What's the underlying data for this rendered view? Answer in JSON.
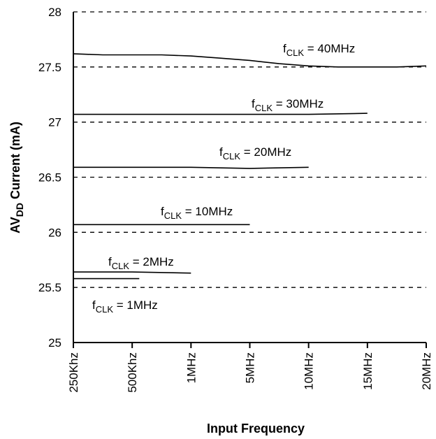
{
  "chart_data": {
    "type": "line",
    "xlabel": "Input Frequency",
    "ylabel": {
      "main": "AV",
      "sub": "DD",
      "rest": " Current (mA)"
    },
    "categories": [
      "250Khz",
      "500Khz",
      "1MHz",
      "5MHz",
      "10MHz",
      "15MHz",
      "20MHz"
    ],
    "y_ticks": [
      "25",
      "25.5",
      "26",
      "26.5",
      "27",
      "27.5",
      "28"
    ],
    "ylim": [
      25,
      28
    ],
    "grid": true,
    "series": [
      {
        "name": {
          "main": "f",
          "sub": "CLK",
          "rest": " = 40MHz"
        },
        "x": [
          0,
          0.5,
          1,
          1.5,
          2,
          2.5,
          3,
          3.5,
          4,
          4.5,
          5,
          5.5,
          6
        ],
        "values": [
          27.62,
          27.61,
          27.61,
          27.61,
          27.6,
          27.58,
          27.56,
          27.53,
          27.51,
          27.5,
          27.5,
          27.5,
          27.51
        ]
      },
      {
        "name": {
          "main": "f",
          "sub": "CLK",
          "rest": " = 30MHz"
        },
        "x": [
          0,
          1,
          2,
          3,
          4,
          5
        ],
        "values": [
          27.07,
          27.07,
          27.07,
          27.07,
          27.07,
          27.08
        ]
      },
      {
        "name": {
          "main": "f",
          "sub": "CLK",
          "rest": " = 20MHz"
        },
        "x": [
          0,
          1,
          2,
          3,
          4
        ],
        "values": [
          26.59,
          26.59,
          26.59,
          26.58,
          26.59
        ]
      },
      {
        "name": {
          "main": "f",
          "sub": "CLK",
          "rest": " = 10MHz"
        },
        "x": [
          0,
          1,
          2,
          3
        ],
        "values": [
          26.07,
          26.07,
          26.07,
          26.07
        ]
      },
      {
        "name": {
          "main": "f",
          "sub": "CLK",
          "rest": " = 2MHz"
        },
        "x": [
          0,
          1,
          2
        ],
        "values": [
          25.64,
          25.64,
          25.63
        ]
      },
      {
        "name": {
          "main": "f",
          "sub": "CLK",
          "rest": " = 1MHz"
        },
        "x": [
          0,
          1,
          1.12
        ],
        "values": [
          25.58,
          25.58,
          25.58
        ]
      }
    ]
  }
}
